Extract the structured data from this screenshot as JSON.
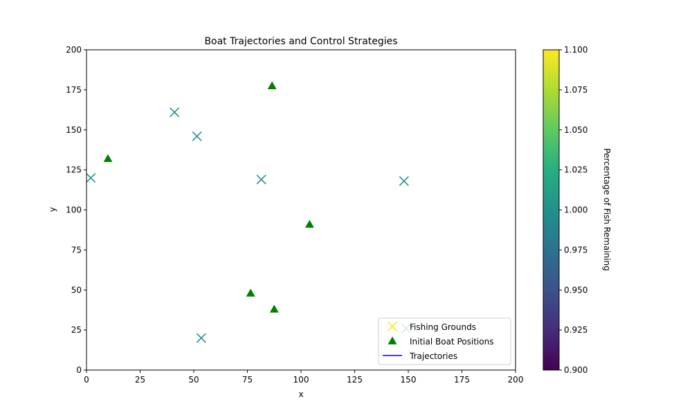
{
  "chart_data": {
    "type": "scatter",
    "title": "Boat Trajectories and Control Strategies",
    "xlabel": "x",
    "ylabel": "y",
    "xlim": [
      0,
      200
    ],
    "ylim": [
      0,
      200
    ],
    "xticks": [
      0,
      25,
      50,
      75,
      100,
      125,
      150,
      175,
      200
    ],
    "yticks": [
      0,
      25,
      50,
      75,
      100,
      125,
      150,
      175,
      200
    ],
    "grid": false,
    "legend_position": "lower-right",
    "series": [
      {
        "name": "Fishing Grounds",
        "marker": "x",
        "legend_color": "#fde725",
        "color": "#21918c",
        "points": [
          {
            "x": 2,
            "y": 120
          },
          {
            "x": 41,
            "y": 161
          },
          {
            "x": 51.5,
            "y": 146
          },
          {
            "x": 81.5,
            "y": 119
          },
          {
            "x": 148,
            "y": 118
          },
          {
            "x": 53.5,
            "y": 20
          },
          {
            "x": 149,
            "y": 26
          }
        ]
      },
      {
        "name": "Initial Boat Positions",
        "marker": "triangle",
        "color": "#008000",
        "points": [
          {
            "x": 86.5,
            "y": 177.5
          },
          {
            "x": 10,
            "y": 132
          },
          {
            "x": 104,
            "y": 91
          },
          {
            "x": 76.5,
            "y": 48
          },
          {
            "x": 87.5,
            "y": 38
          }
        ]
      },
      {
        "name": "Trajectories",
        "marker": "line",
        "color": "#0000ff",
        "points": []
      }
    ],
    "colorbar": {
      "label": "Percentage of Fish Remaining",
      "range": [
        0.9,
        1.1
      ],
      "ticks": [
        "0.900",
        "0.925",
        "0.950",
        "0.975",
        "1.000",
        "1.025",
        "1.050",
        "1.075",
        "1.100"
      ],
      "colormap": "viridis"
    }
  }
}
